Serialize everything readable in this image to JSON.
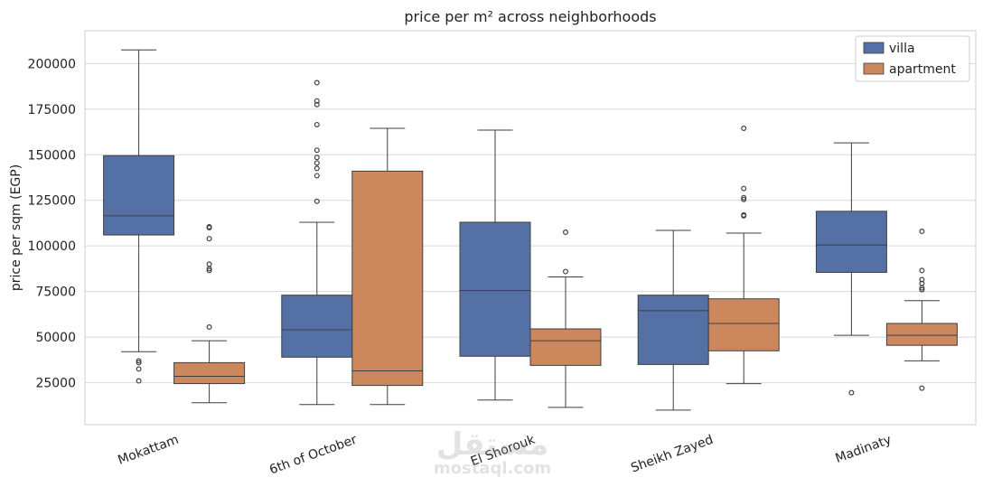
{
  "chart_data": {
    "type": "box",
    "title": "price per m² across neighborhoods",
    "xlabel": "",
    "ylabel": "price per sqm (EGP)",
    "ylim": [
      2000,
      218000
    ],
    "yticks": [
      25000,
      50000,
      75000,
      100000,
      125000,
      150000,
      175000,
      200000
    ],
    "ytick_labels": [
      "25000",
      "50000",
      "75000",
      "100000",
      "125000",
      "150000",
      "175000",
      "200000"
    ],
    "grid": true,
    "legend_position": "top-right",
    "categories": [
      "Mokattam",
      "6th of October",
      "El Shorouk",
      "Sheikh Zayed",
      "Madinaty"
    ],
    "series": [
      {
        "name": "villa",
        "color": "#5470a5",
        "boxes": [
          {
            "whislo": 42000,
            "q1": 106000,
            "med": 116500,
            "q3": 149500,
            "whishi": 207500,
            "fliers": [
              37000,
              36000,
              32500,
              26000
            ]
          },
          {
            "whislo": 13000,
            "q1": 39000,
            "med": 54000,
            "q3": 73000,
            "whishi": 113000,
            "fliers": [
              124500,
              138500,
              142500,
              145500,
              148500,
              152500,
              166500,
              177500,
              179500,
              189500
            ]
          },
          {
            "whislo": 15500,
            "q1": 39500,
            "med": 75500,
            "q3": 113000,
            "whishi": 163500,
            "fliers": []
          },
          {
            "whislo": 10000,
            "q1": 35000,
            "med": 64500,
            "q3": 73000,
            "whishi": 108500,
            "fliers": []
          },
          {
            "whislo": 51000,
            "q1": 85500,
            "med": 100500,
            "q3": 119000,
            "whishi": 156500,
            "fliers": [
              19500
            ]
          }
        ]
      },
      {
        "name": "apartment",
        "color": "#cd875d",
        "boxes": [
          {
            "whislo": 14000,
            "q1": 24500,
            "med": 28500,
            "q3": 36000,
            "whishi": 48000,
            "fliers": [
              55500,
              86500,
              87500,
              90000,
              104000,
              110000,
              110500
            ]
          },
          {
            "whislo": 13000,
            "q1": 23500,
            "med": 31500,
            "q3": 141000,
            "whishi": 164500,
            "fliers": []
          },
          {
            "whislo": 11500,
            "q1": 34500,
            "med": 48000,
            "q3": 54500,
            "whishi": 83000,
            "fliers": [
              86000,
              107500
            ]
          },
          {
            "whislo": 24500,
            "q1": 42500,
            "med": 57500,
            "q3": 71000,
            "whishi": 107000,
            "fliers": [
              116500,
              117000,
              125500,
              126500,
              131500,
              164500
            ]
          },
          {
            "whislo": 37000,
            "q1": 45500,
            "med": 51000,
            "q3": 57500,
            "whishi": 70000,
            "fliers": [
              22000,
              76000,
              77000,
              79500,
              81500,
              86500,
              108000
            ]
          }
        ]
      }
    ]
  },
  "watermark": {
    "arabic": "مستقل",
    "latin": "mostaql.com"
  }
}
